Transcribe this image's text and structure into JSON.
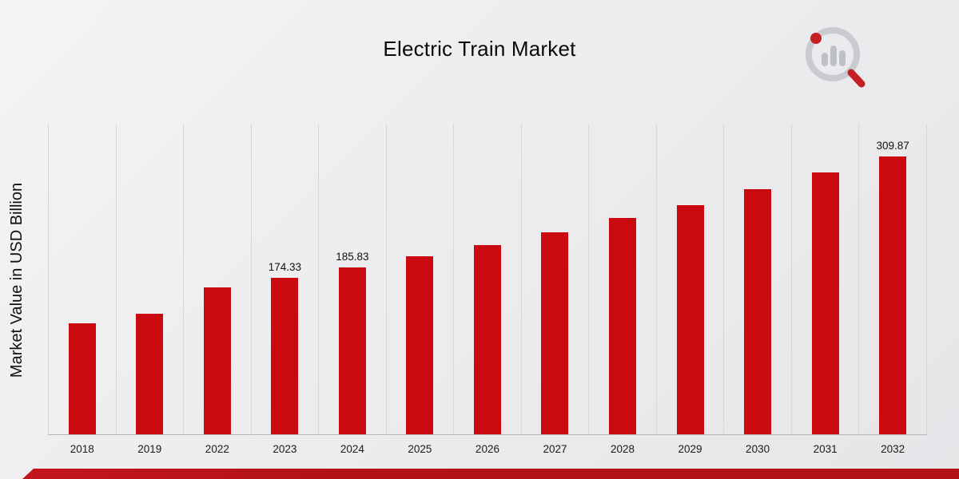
{
  "chart_data": {
    "type": "bar",
    "title": "Electric Train Market",
    "ylabel": "Market Value in USD Billion",
    "categories": [
      "2018",
      "2019",
      "2022",
      "2023",
      "2024",
      "2025",
      "2026",
      "2027",
      "2028",
      "2029",
      "2030",
      "2031",
      "2032"
    ],
    "values": [
      124,
      134,
      163.5,
      174.33,
      185.83,
      198,
      211,
      225,
      241,
      255,
      273,
      292,
      309.87
    ],
    "data_labels": [
      "",
      "",
      "",
      "174.33",
      "185.83",
      "",
      "",
      "",
      "",
      "",
      "",
      "",
      "309.87"
    ],
    "ylim": [
      0,
      346
    ],
    "bar_color": "#cb0a10",
    "grid": "vertical-only",
    "legend": "none"
  },
  "footer": {
    "color": "#b01218"
  },
  "logo": {
    "ring_color": "#c6c8cd",
    "bar_color": "#b9bcc2",
    "accent_color": "#c00a10"
  }
}
